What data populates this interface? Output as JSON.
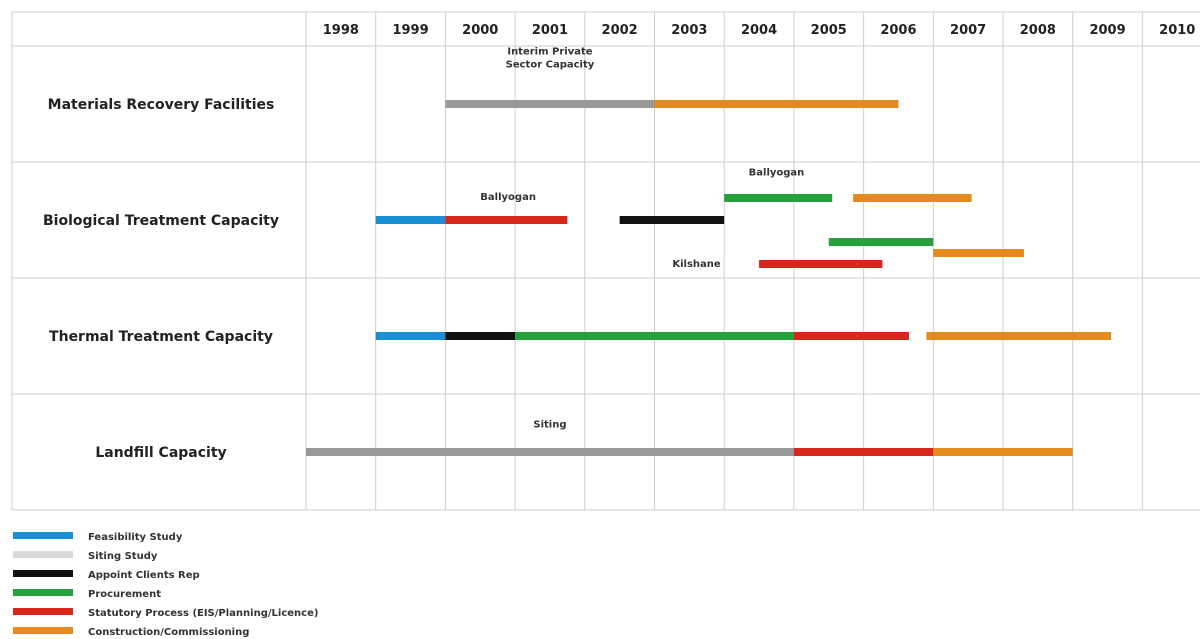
{
  "chart_data": {
    "type": "gantt",
    "years": [
      "1998",
      "1999",
      "2000",
      "2001",
      "2002",
      "2003",
      "2004",
      "2005",
      "2006",
      "2007",
      "2008",
      "2009",
      "2010"
    ],
    "rows": [
      "Materials Recovery Facilities",
      "Biological Treatment Capacity",
      "Thermal Treatment Capacity",
      "Landfill Capacity"
    ],
    "phases": [
      {
        "key": "feasibility",
        "label": "Feasibility Study",
        "color": "#1b8fd6"
      },
      {
        "key": "siting",
        "label": "Siting Study",
        "color": "#d9d9d9"
      },
      {
        "key": "clients_rep",
        "label": "Appoint Clients Rep",
        "color": "#111111"
      },
      {
        "key": "procurement",
        "label": "Procurement",
        "color": "#26a03c"
      },
      {
        "key": "statutory",
        "label": "Statutory Process (EIS/Planning/Licence)",
        "color": "#d9261c"
      },
      {
        "key": "construction",
        "label": "Construction/Commissioning",
        "color": "#e58a1f"
      }
    ],
    "bar_colors": {
      "siting_bar": "#999999"
    },
    "tasks": [
      {
        "row": 0,
        "lane": 0,
        "phase": "siting_bar",
        "start": 2000.0,
        "end": 2003.0
      },
      {
        "row": 0,
        "lane": 0,
        "phase": "construction",
        "start": 2003.0,
        "end": 2006.5
      },
      {
        "row": 1,
        "lane": 0,
        "phase": "feasibility",
        "start": 1999.0,
        "end": 2000.0
      },
      {
        "row": 1,
        "lane": 0,
        "phase": "statutory",
        "start": 2000.0,
        "end": 2001.75
      },
      {
        "row": 1,
        "lane": 0,
        "phase": "clients_rep",
        "start": 2002.5,
        "end": 2004.0
      },
      {
        "row": 1,
        "lane": -1,
        "phase": "procurement",
        "start": 2004.0,
        "end": 2005.55
      },
      {
        "row": 1,
        "lane": -1,
        "phase": "construction",
        "start": 2005.85,
        "end": 2007.55
      },
      {
        "row": 1,
        "lane": 1,
        "phase": "procurement",
        "start": 2005.5,
        "end": 2007.0
      },
      {
        "row": 1,
        "lane": 2,
        "phase": "statutory",
        "start": 2004.5,
        "end": 2006.27
      },
      {
        "row": 1,
        "lane": 1.5,
        "phase": "construction",
        "start": 2007.0,
        "end": 2008.3
      },
      {
        "row": 2,
        "lane": 0,
        "phase": "feasibility",
        "start": 1999.0,
        "end": 2000.0
      },
      {
        "row": 2,
        "lane": 0,
        "phase": "clients_rep",
        "start": 2000.0,
        "end": 2001.0
      },
      {
        "row": 2,
        "lane": 0,
        "phase": "procurement",
        "start": 2001.0,
        "end": 2005.0
      },
      {
        "row": 2,
        "lane": 0,
        "phase": "statutory",
        "start": 2005.0,
        "end": 2006.65
      },
      {
        "row": 2,
        "lane": 0,
        "phase": "construction",
        "start": 2006.9,
        "end": 2009.55
      },
      {
        "row": 3,
        "lane": 0,
        "phase": "siting_bar",
        "start": 1998.0,
        "end": 2005.0
      },
      {
        "row": 3,
        "lane": 0,
        "phase": "statutory",
        "start": 2005.0,
        "end": 2007.0
      },
      {
        "row": 3,
        "lane": 0,
        "phase": "construction",
        "start": 2007.0,
        "end": 2009.0
      }
    ],
    "annotations": [
      {
        "row": 0,
        "lines": [
          "Interim Private",
          "Sector Capacity"
        ],
        "x": 2001.5,
        "lane": -1.85
      },
      {
        "row": 1,
        "lines": [
          "Ballyogan"
        ],
        "x": 2004.75,
        "lane": -2.2
      },
      {
        "row": 1,
        "lines": [
          "Ballyogan"
        ],
        "x": 2000.9,
        "lane": -1.1
      },
      {
        "row": 1,
        "lines": [
          "Kilshane"
        ],
        "x": 2003.95,
        "lane": 1.95,
        "anchor": "end"
      },
      {
        "row": 3,
        "lines": [
          "Siting"
        ],
        "x": 2001.5,
        "lane": -1.3
      }
    ]
  }
}
